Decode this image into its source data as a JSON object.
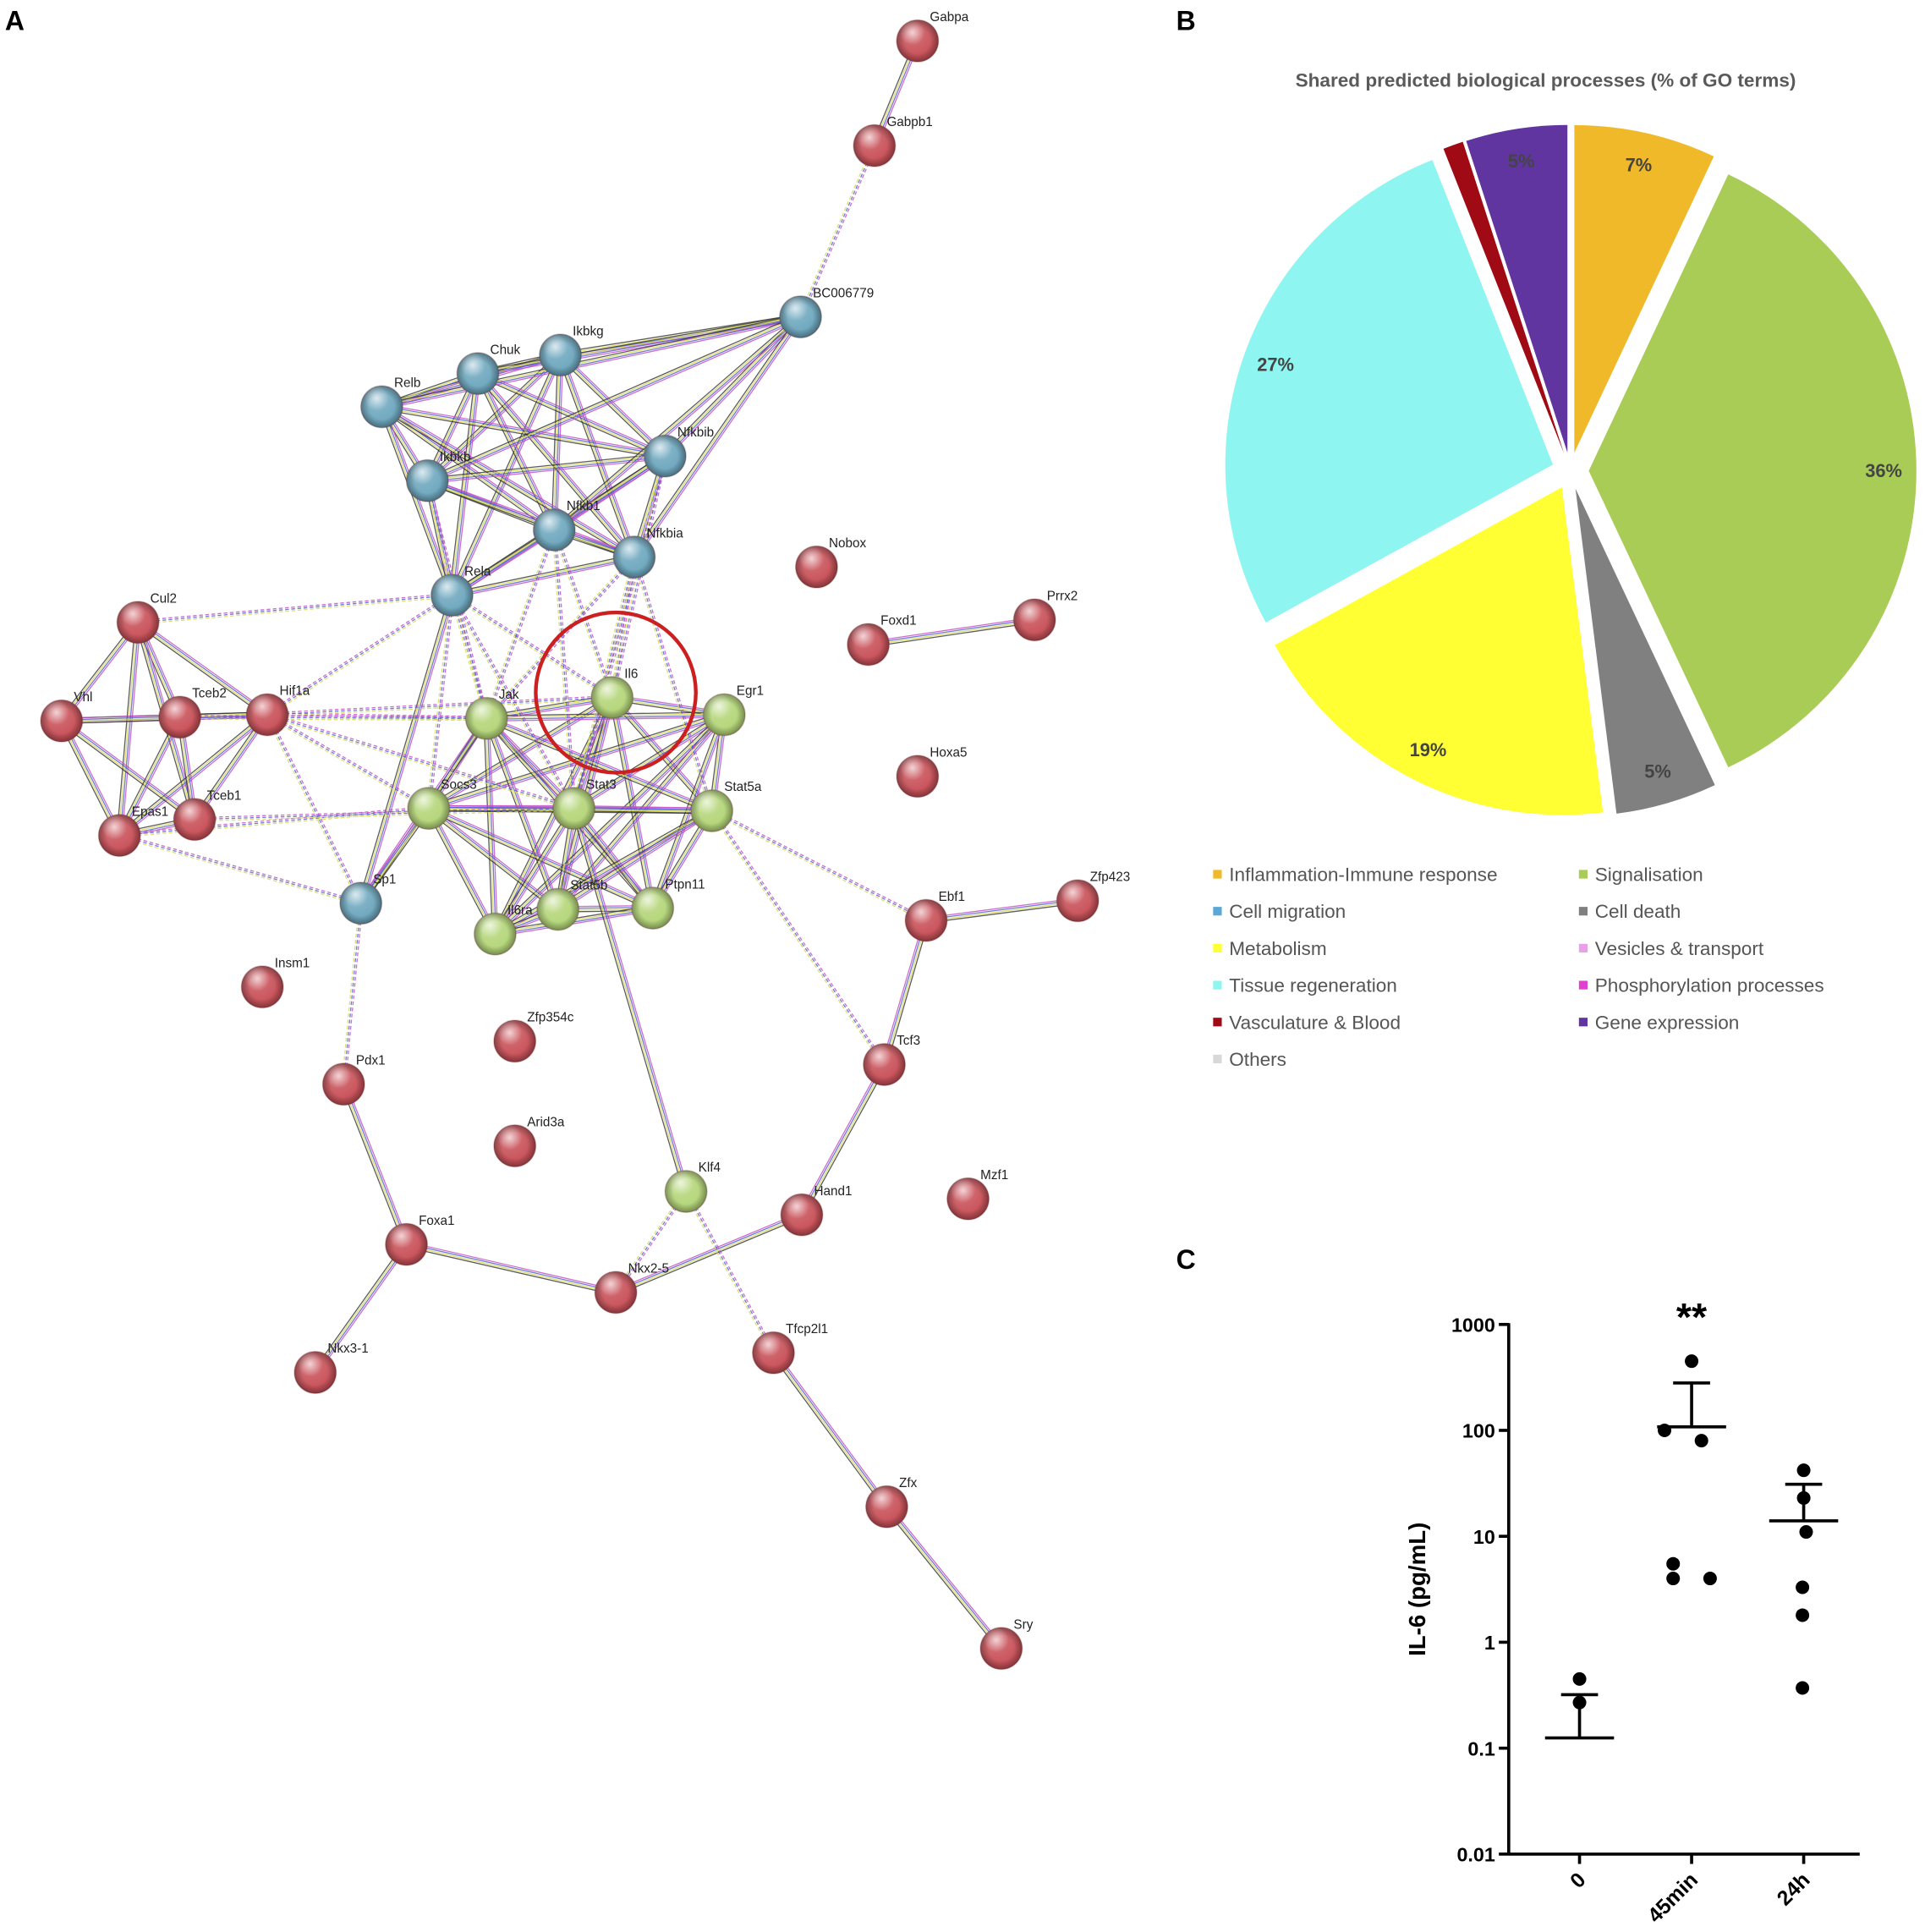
{
  "panel_labels": [
    "A",
    "B",
    "C"
  ],
  "network": {
    "nodes": [
      {
        "label": "Gabpa",
        "color": "#c9525a"
      },
      {
        "label": "Gabpb1",
        "color": "#c9525a"
      },
      {
        "label": "BC006779",
        "color": "#6fa8bf"
      },
      {
        "label": "Ikbkg",
        "color": "#6fa8bf"
      },
      {
        "label": "Chuk",
        "color": "#6fa8bf"
      },
      {
        "label": "Relb",
        "color": "#6fa8bf"
      },
      {
        "label": "Nfkbib",
        "color": "#6fa8bf"
      },
      {
        "label": "Ikbkb",
        "color": "#6fa8bf"
      },
      {
        "label": "Nfkb1",
        "color": "#6fa8bf"
      },
      {
        "label": "Nfkbia",
        "color": "#6fa8bf"
      },
      {
        "label": "Rela",
        "color": "#6fa8bf"
      },
      {
        "label": "Nobox",
        "color": "#c9525a"
      },
      {
        "label": "Cul2",
        "color": "#c9525a"
      },
      {
        "label": "Foxd1",
        "color": "#c9525a"
      },
      {
        "label": "Prrx2",
        "color": "#c9525a"
      },
      {
        "label": "Il6",
        "color": "#b5d67a"
      },
      {
        "label": "Egr1",
        "color": "#b5d67a"
      },
      {
        "label": "Jak",
        "color": "#b5d67a"
      },
      {
        "label": "Hif1a",
        "color": "#c9525a"
      },
      {
        "label": "Vhl",
        "color": "#c9525a"
      },
      {
        "label": "Tceb2",
        "color": "#c9525a"
      },
      {
        "label": "Hoxa5",
        "color": "#c9525a"
      },
      {
        "label": "Socs3",
        "color": "#b5d67a"
      },
      {
        "label": "Stat3",
        "color": "#b5d67a"
      },
      {
        "label": "Stat5a",
        "color": "#b5d67a"
      },
      {
        "label": "Tceb1",
        "color": "#c9525a"
      },
      {
        "label": "Epas1",
        "color": "#c9525a"
      },
      {
        "label": "Sp1",
        "color": "#6fa8bf"
      },
      {
        "label": "Stat5b",
        "color": "#b5d67a"
      },
      {
        "label": "Ptpn11",
        "color": "#b5d67a"
      },
      {
        "label": "Il6ra",
        "color": "#b5d67a"
      },
      {
        "label": "Ebf1",
        "color": "#c9525a"
      },
      {
        "label": "Zfp423",
        "color": "#c9525a"
      },
      {
        "label": "Insm1",
        "color": "#c9525a"
      },
      {
        "label": "Zfp354c",
        "color": "#c9525a"
      },
      {
        "label": "Pdx1",
        "color": "#c9525a"
      },
      {
        "label": "Tcf3",
        "color": "#c9525a"
      },
      {
        "label": "Arid3a",
        "color": "#c9525a"
      },
      {
        "label": "Klf4",
        "color": "#b5d67a"
      },
      {
        "label": "Hand1",
        "color": "#c9525a"
      },
      {
        "label": "Mzf1",
        "color": "#c9525a"
      },
      {
        "label": "Foxa1",
        "color": "#c9525a"
      },
      {
        "label": "Nkx2-5",
        "color": "#c9525a"
      },
      {
        "label": "Nkx3-1",
        "color": "#c9525a"
      },
      {
        "label": "Tfcp2l1",
        "color": "#c9525a"
      },
      {
        "label": "Zfx",
        "color": "#c9525a"
      },
      {
        "label": "Sry",
        "color": "#c9525a"
      }
    ]
  },
  "chart_data": [
    {
      "type": "pie",
      "title": "Shared predicted biological processes (% of GO terms)",
      "categories": [
        "Inflammation-Immune response",
        "Signalisation",
        "Cell migration",
        "Cell death",
        "Metabolism",
        "Vesicles & transport",
        "Tissue regeneration",
        "Phosphorylation processes",
        "Vasculature & Blood",
        "Gene expression",
        "Others"
      ],
      "values": [
        7,
        36,
        0,
        5,
        19,
        0,
        27,
        0,
        1,
        5,
        0
      ],
      "value_labels": [
        "7%",
        "36%",
        null,
        "5%",
        "19%",
        null,
        "27%",
        null,
        null,
        "5%",
        null
      ],
      "colors": [
        "#f0b92a",
        "#a8cc55",
        "#5ba7d6",
        "#808080",
        "#ffff33",
        "#e8a0e8",
        "#8ef5f0",
        "#e040d0",
        "#a00a15",
        "#6035a0",
        "#d8d8d8"
      ]
    },
    {
      "type": "scatter",
      "ylabel": "IL-6 (pg/mL)",
      "annotation": "**",
      "categories": [
        "0",
        "45min",
        "24h"
      ],
      "points": [
        [
          0.45,
          0.27
        ],
        [
          450,
          100,
          80,
          5.5,
          4,
          4
        ],
        [
          42,
          23,
          11,
          3.3,
          1.8,
          0.37
        ]
      ],
      "means": [
        0.125,
        108,
        14
      ],
      "errors": [
        0.195,
        172,
        17
      ],
      "yscale": "log",
      "ylim": [
        0.01,
        1000
      ],
      "yticks": [
        0.01,
        0.1,
        1,
        10,
        100,
        1000
      ],
      "color": "#000000"
    }
  ]
}
